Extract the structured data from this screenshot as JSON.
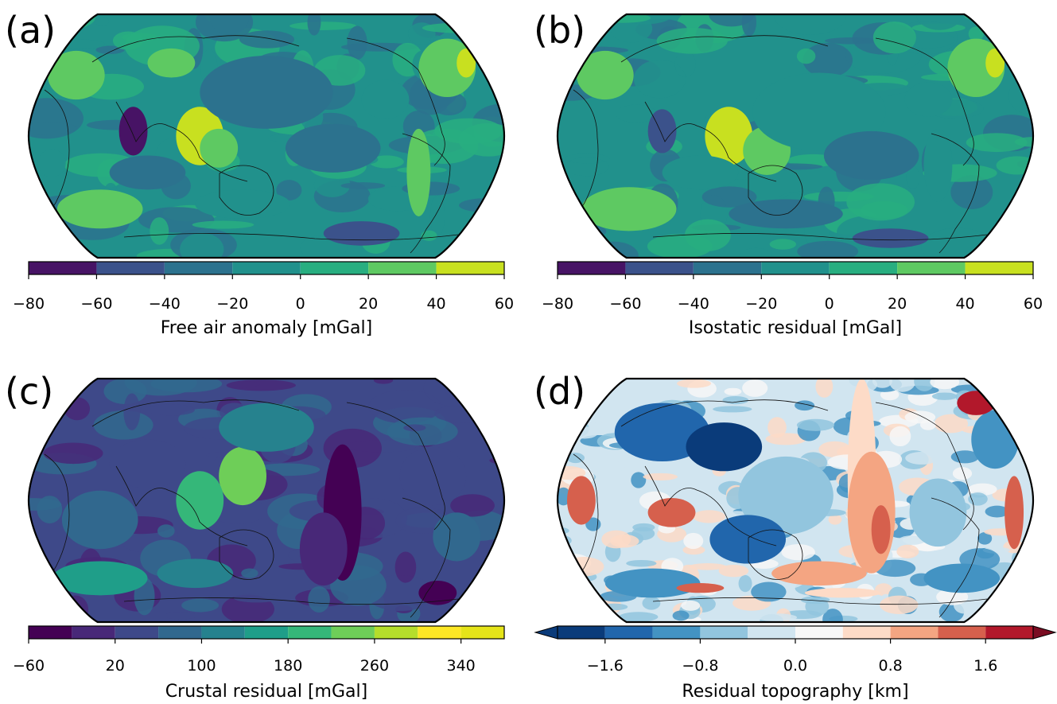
{
  "figure": {
    "panels": [
      {
        "id": "a",
        "label": "(a)"
      },
      {
        "id": "b",
        "label": "(b)"
      },
      {
        "id": "c",
        "label": "(c)"
      },
      {
        "id": "d",
        "label": "(d)"
      }
    ]
  },
  "chart_data": [
    {
      "type": "heatmap",
      "panel": "(a)",
      "projection": "robinson",
      "map_center": "Pacific",
      "colormap": "viridis",
      "colorbar_label": "Free air anomaly [mGal]",
      "colorbar_levels": [
        -80,
        -60,
        -40,
        -20,
        0,
        20,
        40,
        60
      ],
      "colorbar_colors": [
        "#471365",
        "#3b528b",
        "#2c728e",
        "#21918c",
        "#28ae80",
        "#5ec962",
        "#c8e020"
      ],
      "tick_values": [
        -80,
        -60,
        -40,
        -20,
        0,
        20,
        40,
        60
      ],
      "tick_labels": [
        "−80",
        "−60",
        "−40",
        "−20",
        "0",
        "20",
        "40",
        "60"
      ],
      "vmin": -80,
      "vmax": 60
    },
    {
      "type": "heatmap",
      "panel": "(b)",
      "projection": "robinson",
      "map_center": "Pacific",
      "colormap": "viridis",
      "colorbar_label": "Isostatic residual [mGal]",
      "colorbar_levels": [
        -80,
        -60,
        -40,
        -20,
        0,
        20,
        40,
        60
      ],
      "colorbar_colors": [
        "#471365",
        "#3b528b",
        "#2c728e",
        "#21918c",
        "#28ae80",
        "#5ec962",
        "#c8e020"
      ],
      "tick_values": [
        -80,
        -60,
        -40,
        -20,
        0,
        20,
        40,
        60
      ],
      "tick_labels": [
        "−80",
        "−60",
        "−40",
        "−20",
        "0",
        "20",
        "40",
        "60"
      ],
      "vmin": -80,
      "vmax": 60
    },
    {
      "type": "heatmap",
      "panel": "(c)",
      "projection": "robinson",
      "map_center": "Pacific",
      "colormap": "viridis",
      "colorbar_label": "Crustal residual [mGal]",
      "colorbar_levels": [
        -60,
        -20,
        20,
        60,
        100,
        140,
        180,
        220,
        260,
        300,
        340,
        380
      ],
      "colorbar_colors": [
        "#440154",
        "#482878",
        "#3e4989",
        "#31688e",
        "#26828e",
        "#1f9e89",
        "#35b779",
        "#6ece58",
        "#b5de2b",
        "#fde725",
        "#e5e419"
      ],
      "tick_values": [
        -60,
        20,
        100,
        180,
        260,
        340
      ],
      "tick_labels": [
        "−60",
        "20",
        "100",
        "180",
        "260",
        "340"
      ],
      "vmin": -60,
      "vmax": 380
    },
    {
      "type": "heatmap",
      "panel": "(d)",
      "projection": "robinson",
      "map_center": "Pacific",
      "colormap": "RdBu_r",
      "colorbar_label": "Residual topography [km]",
      "colorbar_extend": "both",
      "colorbar_levels": [
        -2.0,
        -1.6,
        -1.2,
        -0.8,
        -0.4,
        0.0,
        0.4,
        0.8,
        1.2,
        1.6,
        2.0
      ],
      "colorbar_colors": [
        "#0a3b7a",
        "#2166ac",
        "#4393c3",
        "#92c5de",
        "#d1e5f0",
        "#f7f7f7",
        "#fddbc7",
        "#f4a582",
        "#d6604d",
        "#b2182b",
        "#7a0c22"
      ],
      "tick_values": [
        -1.6,
        -0.8,
        0.0,
        0.8,
        1.6
      ],
      "tick_labels": [
        "−1.6",
        "−0.8",
        "0.0",
        "0.8",
        "1.6"
      ],
      "vmin": -2.0,
      "vmax": 2.0
    }
  ]
}
